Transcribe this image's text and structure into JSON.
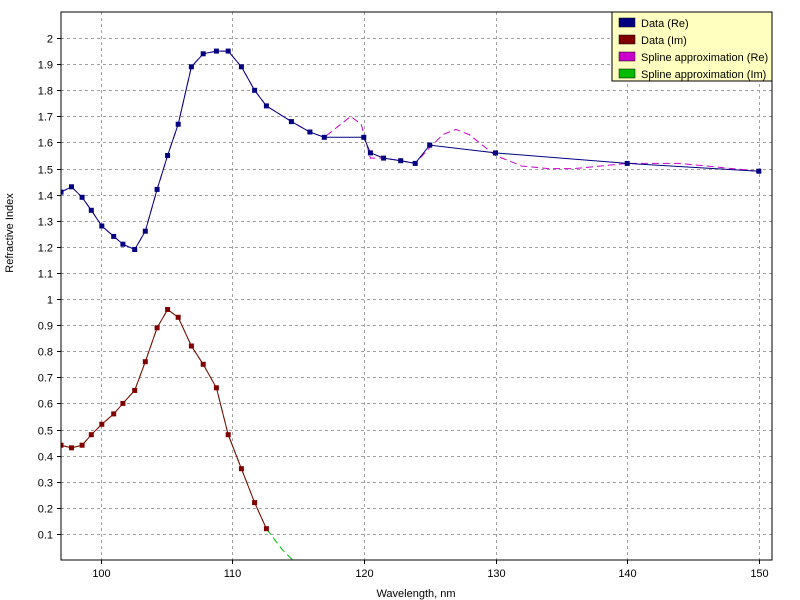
{
  "chart_data": {
    "type": "line",
    "xlabel": "Wavelength, nm",
    "ylabel": "Refractive Index",
    "xlim": [
      97,
      151
    ],
    "ylim": [
      0,
      2.1
    ],
    "x_ticks": [
      100,
      110,
      120,
      130,
      140,
      150
    ],
    "y_ticks": [
      0.1,
      0.2,
      0.3,
      0.4,
      0.5,
      0.6,
      0.7,
      0.8,
      0.9,
      1,
      1.1,
      1.2,
      1.3,
      1.4,
      1.5,
      1.6,
      1.7,
      1.8,
      1.9,
      2
    ],
    "grid": true,
    "legend_position": "top-right",
    "colors": {
      "data_re": "#000080",
      "data_im": "#800000",
      "spline_re": "#cc00cc",
      "spline_im": "#00bb00",
      "grid": "#a0a0a0",
      "legend_bg": "#ffffc0"
    },
    "series": [
      {
        "name": "Data (Re)",
        "key": "data_re",
        "x": [
          97,
          97.8,
          98.6,
          99.3,
          100.1,
          101,
          101.7,
          102.6,
          103.4,
          104.3,
          105.1,
          105.9,
          106.9,
          107.8,
          108.8,
          109.7,
          110.7,
          111.7,
          112.6,
          114.5,
          115.9,
          117,
          120,
          120.5,
          121.5,
          122.8,
          123.9,
          125,
          130,
          140,
          150
        ],
        "y": [
          1.41,
          1.43,
          1.39,
          1.34,
          1.28,
          1.24,
          1.21,
          1.19,
          1.26,
          1.42,
          1.55,
          1.67,
          1.89,
          1.94,
          1.95,
          1.95,
          1.89,
          1.8,
          1.74,
          1.68,
          1.64,
          1.62,
          1.62,
          1.56,
          1.54,
          1.53,
          1.52,
          1.59,
          1.56,
          1.52,
          1.49
        ]
      },
      {
        "name": "Data (Im)",
        "key": "data_im",
        "x": [
          97,
          97.8,
          98.6,
          99.3,
          100.1,
          101,
          101.7,
          102.6,
          103.4,
          104.3,
          105.1,
          105.9,
          106.9,
          107.8,
          108.8,
          109.7,
          110.7,
          111.7,
          112.6
        ],
        "y": [
          0.44,
          0.43,
          0.44,
          0.48,
          0.52,
          0.56,
          0.6,
          0.65,
          0.76,
          0.89,
          0.96,
          0.93,
          0.82,
          0.75,
          0.66,
          0.48,
          0.35,
          0.22,
          0.12
        ]
      },
      {
        "name": "Spline approximation (Re)",
        "key": "spline_re",
        "x": [
          97,
          97.8,
          98.6,
          99.3,
          100.1,
          101,
          101.7,
          102.6,
          103.4,
          104.3,
          105.1,
          105.9,
          106.9,
          107.8,
          108.8,
          109.7,
          110.7,
          111.7,
          112.6,
          114.5,
          115.9,
          117,
          118,
          119,
          119.8,
          120.5,
          121.5,
          122.8,
          123.9,
          125,
          126,
          127,
          128,
          129,
          130,
          132,
          134,
          136,
          138,
          140,
          142,
          144,
          146,
          148,
          150
        ],
        "y": [
          1.41,
          1.43,
          1.39,
          1.34,
          1.28,
          1.24,
          1.21,
          1.19,
          1.26,
          1.42,
          1.55,
          1.67,
          1.89,
          1.94,
          1.95,
          1.95,
          1.89,
          1.8,
          1.74,
          1.68,
          1.64,
          1.62,
          1.66,
          1.7,
          1.67,
          1.54,
          1.54,
          1.53,
          1.52,
          1.58,
          1.63,
          1.65,
          1.63,
          1.59,
          1.55,
          1.51,
          1.5,
          1.5,
          1.51,
          1.52,
          1.52,
          1.52,
          1.51,
          1.5,
          1.49
        ]
      },
      {
        "name": "Spline approximation (Im)",
        "key": "spline_im",
        "x": [
          97,
          97.8,
          98.6,
          99.3,
          100.1,
          101,
          101.7,
          102.6,
          103.4,
          104.3,
          105.1,
          105.9,
          106.9,
          107.8,
          108.8,
          109.7,
          110.7,
          111.7,
          112.6,
          113.8,
          114.6
        ],
        "y": [
          0.44,
          0.43,
          0.44,
          0.48,
          0.52,
          0.56,
          0.6,
          0.65,
          0.76,
          0.89,
          0.96,
          0.93,
          0.82,
          0.75,
          0.66,
          0.48,
          0.35,
          0.22,
          0.12,
          0.04,
          0
        ]
      }
    ]
  }
}
